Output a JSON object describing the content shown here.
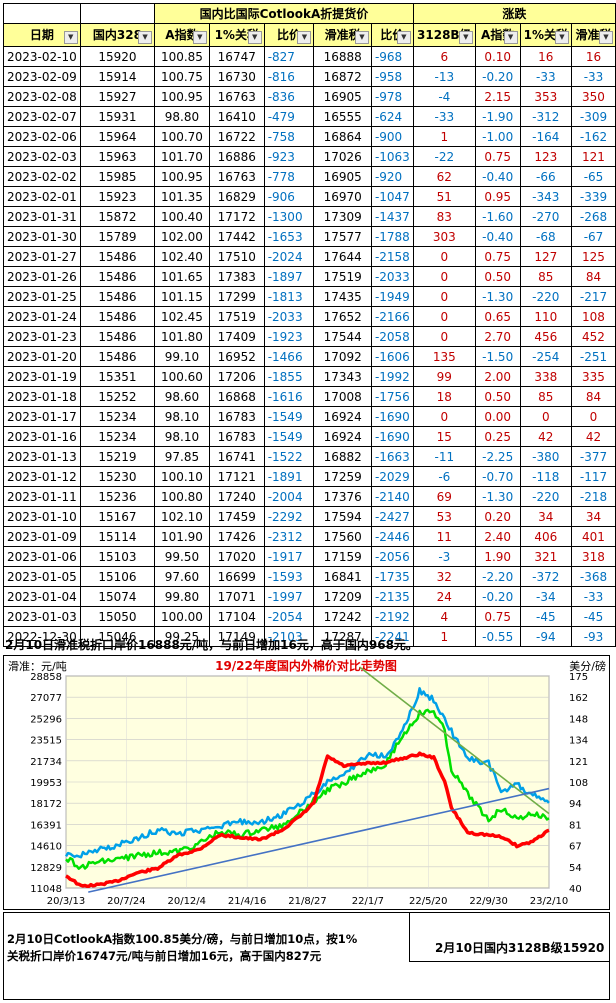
{
  "table": {
    "group_headers": {
      "left": "国内比国际CotlookA折提货价",
      "right": "涨跌"
    },
    "columns": [
      "日期",
      "国内328",
      "A指数",
      "1%关税",
      "比价",
      "滑准税",
      "比价",
      "3128B级",
      "A指数",
      "1%关税",
      "滑准税"
    ],
    "rows": [
      [
        "2023-02-10",
        "15920",
        "100.85",
        "16747",
        "-827",
        "16888",
        "-968",
        "6",
        "0.10",
        "16",
        "16"
      ],
      [
        "2023-02-09",
        "15914",
        "100.75",
        "16730",
        "-816",
        "16872",
        "-958",
        "-13",
        "-0.20",
        "-33",
        "-33"
      ],
      [
        "2023-02-08",
        "15927",
        "100.95",
        "16763",
        "-836",
        "16905",
        "-978",
        "-4",
        "2.15",
        "353",
        "350"
      ],
      [
        "2023-02-07",
        "15931",
        "98.80",
        "16410",
        "-479",
        "16555",
        "-624",
        "-33",
        "-1.90",
        "-312",
        "-309"
      ],
      [
        "2023-02-06",
        "15964",
        "100.70",
        "16722",
        "-758",
        "16864",
        "-900",
        "1",
        "-1.00",
        "-164",
        "-162"
      ],
      [
        "2023-02-03",
        "15963",
        "101.70",
        "16886",
        "-923",
        "17026",
        "-1063",
        "-22",
        "0.75",
        "123",
        "121"
      ],
      [
        "2023-02-02",
        "15985",
        "100.95",
        "16763",
        "-778",
        "16905",
        "-920",
        "62",
        "-0.40",
        "-66",
        "-65"
      ],
      [
        "2023-02-01",
        "15923",
        "101.35",
        "16829",
        "-906",
        "16970",
        "-1047",
        "51",
        "0.95",
        "-343",
        "-339"
      ],
      [
        "2023-01-31",
        "15872",
        "100.40",
        "17172",
        "-1300",
        "17309",
        "-1437",
        "83",
        "-1.60",
        "-270",
        "-268"
      ],
      [
        "2023-01-30",
        "15789",
        "102.00",
        "17442",
        "-1653",
        "17577",
        "-1788",
        "303",
        "-0.40",
        "-68",
        "-67"
      ],
      [
        "2023-01-27",
        "15486",
        "102.40",
        "17510",
        "-2024",
        "17644",
        "-2158",
        "0",
        "0.75",
        "127",
        "125"
      ],
      [
        "2023-01-26",
        "15486",
        "101.65",
        "17383",
        "-1897",
        "17519",
        "-2033",
        "0",
        "0.50",
        "85",
        "84"
      ],
      [
        "2023-01-25",
        "15486",
        "101.15",
        "17299",
        "-1813",
        "17435",
        "-1949",
        "0",
        "-1.30",
        "-220",
        "-217"
      ],
      [
        "2023-01-24",
        "15486",
        "102.45",
        "17519",
        "-2033",
        "17652",
        "-2166",
        "0",
        "0.65",
        "110",
        "108"
      ],
      [
        "2023-01-23",
        "15486",
        "101.80",
        "17409",
        "-1923",
        "17544",
        "-2058",
        "0",
        "2.70",
        "456",
        "452"
      ],
      [
        "2023-01-20",
        "15486",
        "99.10",
        "16952",
        "-1466",
        "17092",
        "-1606",
        "135",
        "-1.50",
        "-254",
        "-251"
      ],
      [
        "2023-01-19",
        "15351",
        "100.60",
        "17206",
        "-1855",
        "17343",
        "-1992",
        "99",
        "2.00",
        "338",
        "335"
      ],
      [
        "2023-01-18",
        "15252",
        "98.60",
        "16868",
        "-1616",
        "17008",
        "-1756",
        "18",
        "0.50",
        "85",
        "84"
      ],
      [
        "2023-01-17",
        "15234",
        "98.10",
        "16783",
        "-1549",
        "16924",
        "-1690",
        "0",
        "0.00",
        "0",
        "0"
      ],
      [
        "2023-01-16",
        "15234",
        "98.10",
        "16783",
        "-1549",
        "16924",
        "-1690",
        "15",
        "0.25",
        "42",
        "42"
      ],
      [
        "2023-01-13",
        "15219",
        "97.85",
        "16741",
        "-1522",
        "16882",
        "-1663",
        "-11",
        "-2.25",
        "-380",
        "-377"
      ],
      [
        "2023-01-12",
        "15230",
        "100.10",
        "17121",
        "-1891",
        "17259",
        "-2029",
        "-6",
        "-0.70",
        "-118",
        "-117"
      ],
      [
        "2023-01-11",
        "15236",
        "100.80",
        "17240",
        "-2004",
        "17376",
        "-2140",
        "69",
        "-1.30",
        "-220",
        "-218"
      ],
      [
        "2023-01-10",
        "15167",
        "102.10",
        "17459",
        "-2292",
        "17594",
        "-2427",
        "53",
        "0.20",
        "34",
        "34"
      ],
      [
        "2023-01-09",
        "15114",
        "101.90",
        "17426",
        "-2312",
        "17560",
        "-2446",
        "11",
        "2.40",
        "406",
        "401"
      ],
      [
        "2023-01-06",
        "15103",
        "99.50",
        "17020",
        "-1917",
        "17159",
        "-2056",
        "-3",
        "1.90",
        "321",
        "318"
      ],
      [
        "2023-01-05",
        "15106",
        "97.60",
        "16699",
        "-1593",
        "16841",
        "-1735",
        "32",
        "-2.20",
        "-372",
        "-368"
      ],
      [
        "2023-01-04",
        "15074",
        "99.80",
        "17071",
        "-1997",
        "17209",
        "-2135",
        "24",
        "-0.20",
        "-34",
        "-33"
      ],
      [
        "2023-01-03",
        "15050",
        "100.00",
        "17104",
        "-2054",
        "17242",
        "-2192",
        "4",
        "0.75",
        "-45",
        "-45"
      ],
      [
        "2022-12-30",
        "15046",
        "99.25",
        "17149",
        "-2103",
        "17287",
        "-2241",
        "1",
        "-0.55",
        "-94",
        "-93"
      ]
    ]
  },
  "note_top": "2月10日滑准税折口岸价16888元/吨，与前日增加16元，高于国内968元。",
  "note_bottom": "2月10日CotlookA指数100.85美分/磅，与前日增加10点，按1%关税折口岸价16747元/吨与前日增加16元，高于国内827元",
  "note_right": "2月10日国内3128B级15920",
  "colors": {
    "header_bg": "#ffff99",
    "positive": "#c00000",
    "negative": "#0070c0",
    "red_line": "#ff0000",
    "green_line": "#00e000",
    "blue_line": "#00a0e8",
    "trend_green": "#70ad47",
    "trend_blue": "#4472c4"
  },
  "chart_data": {
    "type": "line",
    "title": "19/22年度国内外棉价对比走势图",
    "ylabel_left": "滑准：元/吨",
    "ylabel_right": "美分/磅",
    "y_left_ticks": [
      "28858",
      "27077",
      "25296",
      "23515",
      "21734",
      "19953",
      "18172",
      "16391",
      "14610",
      "12829",
      "11048"
    ],
    "y_right_ticks": [
      "175",
      "162",
      "148",
      "134",
      "121",
      "108",
      "94",
      "81",
      "67",
      "54",
      "40"
    ],
    "x_ticks": [
      "20/3/13",
      "20/7/24",
      "20/12/4",
      "21/4/16",
      "21/8/27",
      "22/1/7",
      "22/5/20",
      "22/9/30",
      "23/2/10"
    ],
    "ylim_left": [
      11048,
      28858
    ],
    "series": [
      {
        "name": "国内328",
        "color": "#ff0000",
        "x": [
          "2020-03-13",
          "2020-04-15",
          "2020-05-20",
          "2020-07-01",
          "2020-08-15",
          "2020-10-01",
          "2020-11-15",
          "2021-01-01",
          "2021-02-15",
          "2021-04-01",
          "2021-05-15",
          "2021-07-01",
          "2021-08-15",
          "2021-09-10",
          "2021-10-10",
          "2021-11-15",
          "2022-01-01",
          "2022-02-15",
          "2022-03-20",
          "2022-05-01",
          "2022-06-01",
          "2022-06-25",
          "2022-07-10",
          "2022-08-15",
          "2022-09-30",
          "2022-11-01",
          "2022-12-01",
          "2023-01-01",
          "2023-02-10"
        ],
        "y": [
          12100,
          11200,
          11300,
          11600,
          12300,
          12700,
          13800,
          14300,
          15500,
          15300,
          15100,
          15900,
          17200,
          18200,
          22100,
          21300,
          21500,
          21600,
          21900,
          22300,
          22000,
          20000,
          17800,
          15700,
          15500,
          15300,
          14600,
          14900,
          15900
        ]
      },
      {
        "name": "滑准税",
        "color": "#00e000",
        "x": [
          "2020-03-13",
          "2020-04-15",
          "2020-05-20",
          "2020-07-01",
          "2020-08-15",
          "2020-10-01",
          "2020-11-15",
          "2021-01-01",
          "2021-02-15",
          "2021-04-01",
          "2021-05-15",
          "2021-07-01",
          "2021-08-15",
          "2021-10-10",
          "2021-11-15",
          "2022-01-01",
          "2022-02-15",
          "2022-03-20",
          "2022-05-01",
          "2022-06-01",
          "2022-06-25",
          "2022-07-10",
          "2022-08-15",
          "2022-09-30",
          "2022-11-01",
          "2022-12-01",
          "2023-01-01",
          "2023-02-10"
        ],
        "y": [
          13600,
          12800,
          13200,
          13400,
          13800,
          14000,
          14100,
          14800,
          15800,
          15500,
          15900,
          16300,
          17600,
          19300,
          19900,
          20800,
          21500,
          23600,
          25700,
          25900,
          24300,
          21000,
          18900,
          16800,
          17800,
          16800,
          17300,
          16900
        ]
      },
      {
        "name": "1%关税",
        "color": "#00a0e8",
        "x": [
          "2020-03-13",
          "2020-04-15",
          "2020-05-20",
          "2020-07-01",
          "2020-08-15",
          "2020-10-01",
          "2020-11-15",
          "2021-01-01",
          "2021-02-15",
          "2021-04-01",
          "2021-05-15",
          "2021-07-01",
          "2021-08-15",
          "2021-10-10",
          "2021-11-15",
          "2022-01-01",
          "2022-02-15",
          "2022-03-20",
          "2022-05-01",
          "2022-06-01",
          "2022-06-25",
          "2022-07-10",
          "2022-08-15",
          "2022-09-30",
          "2022-11-01",
          "2022-12-01",
          "2023-01-01",
          "2023-02-10"
        ],
        "y": [
          13900,
          13800,
          14300,
          14600,
          15200,
          15900,
          15600,
          15900,
          16300,
          16600,
          16600,
          17200,
          18200,
          19900,
          20600,
          22100,
          22200,
          23900,
          27600,
          26900,
          25300,
          24200,
          22000,
          21500,
          19000,
          19800,
          18900,
          18200
        ]
      }
    ],
    "trendlines": [
      {
        "color": "#70ad47",
        "from": [
          "2021-12-20",
          29600
        ],
        "to": [
          "2023-02-10",
          17300
        ]
      },
      {
        "color": "#4472c4",
        "from": [
          "2020-05-01",
          10700
        ],
        "to": [
          "2023-02-10",
          19400
        ]
      }
    ]
  }
}
